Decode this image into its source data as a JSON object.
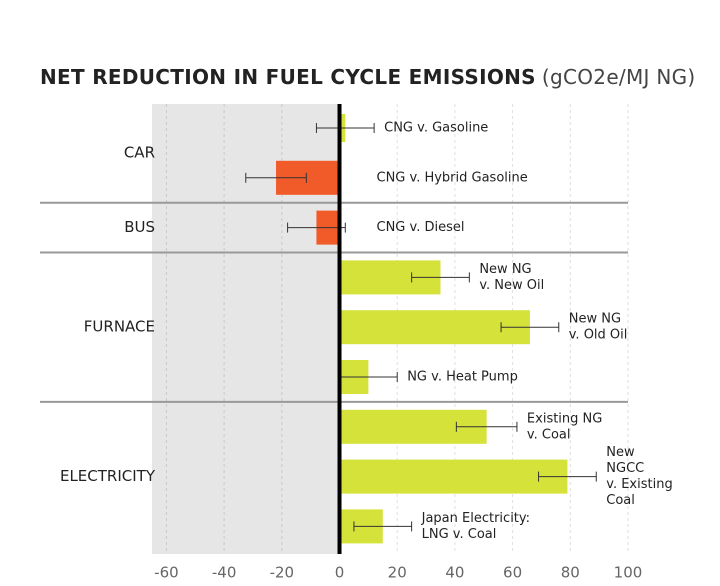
{
  "chart_data": {
    "type": "hbar-errors",
    "title": "NET REDUCTION IN FUEL CYCLE EMISSIONS",
    "title_units": "(gCO2e/MJ NG)",
    "categories": [
      [
        "CNG v. Gasoline"
      ],
      [
        "CNG v. Hybrid Gasoline"
      ],
      [
        "CNG v. Diesel"
      ],
      [
        "New NG",
        "v. New Oil"
      ],
      [
        "New NG",
        "v. Old Oil"
      ],
      [
        "NG v. Heat Pump"
      ],
      [
        "Existing NG",
        "v. Coal"
      ],
      [
        "New",
        "NGCC",
        "v. Existing",
        "Coal"
      ],
      [
        "Japan Electricity:",
        "LNG v. Coal"
      ]
    ],
    "values": [
      2,
      -22,
      -8,
      35,
      66,
      10,
      51,
      79,
      15
    ],
    "errors": [
      10,
      10.5,
      10,
      10,
      10,
      10,
      10.5,
      10,
      10
    ],
    "colors": [
      "#d5e23a",
      "#f15a29",
      "#f15a29",
      "#d5e23a",
      "#d5e23a",
      "#d5e23a",
      "#d5e23a",
      "#d5e23a",
      "#d5e23a"
    ],
    "groups": [
      {
        "name": "CAR",
        "size": 2
      },
      {
        "name": "BUS",
        "size": 1
      },
      {
        "name": "FURNACE",
        "size": 3
      },
      {
        "name": "ELECTRICITY",
        "size": 3
      }
    ],
    "xlim": [
      -65,
      100
    ],
    "xticks": [
      -60,
      -40,
      -20,
      0,
      20,
      40,
      60,
      80,
      100
    ],
    "grid": true
  }
}
